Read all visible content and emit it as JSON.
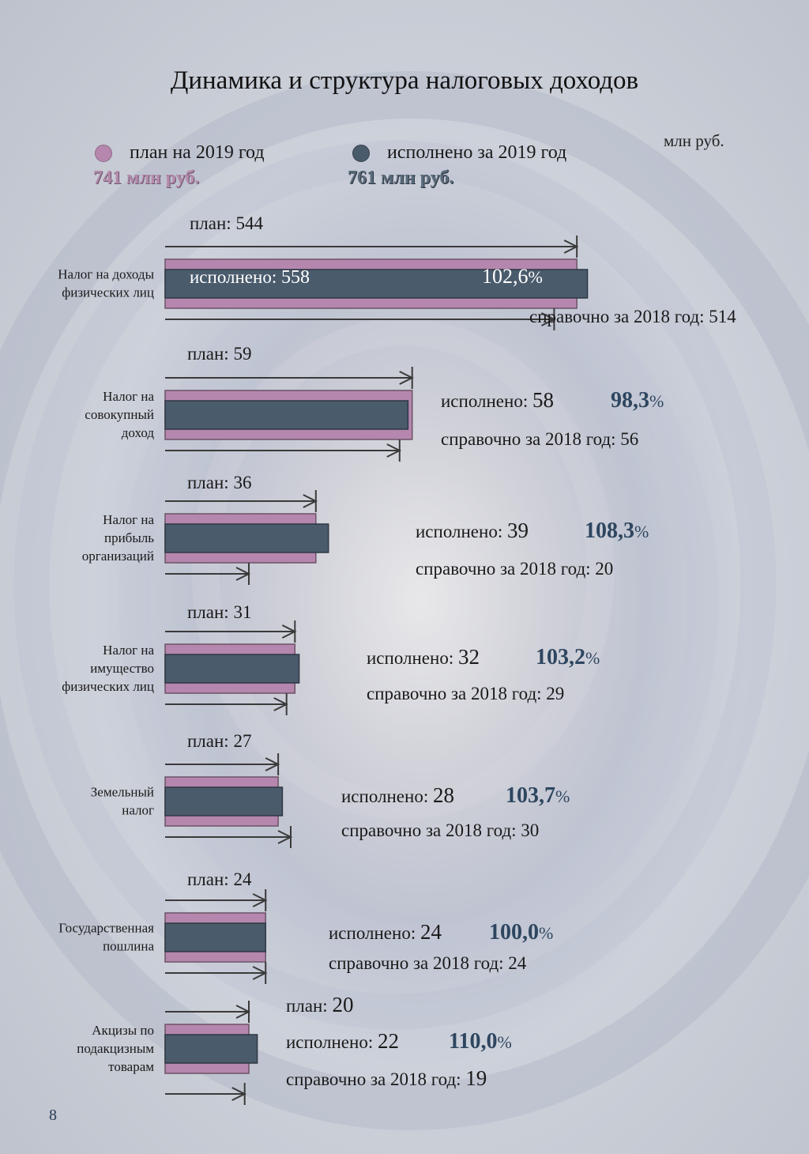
{
  "page": {
    "title": "Динамика и структура налоговых доходов",
    "unit": "млн руб.",
    "page_number": "8"
  },
  "legend": {
    "plan": {
      "label": "план на 2019 год",
      "total": "741 млн руб.",
      "color": "#b587ae"
    },
    "exec": {
      "label": "исполнено за 2019 год",
      "total": "761 млн руб.",
      "color": "#4a5b6c"
    }
  },
  "prefixes": {
    "plan": "план: ",
    "exec": "исполнено: ",
    "ref": "справочно за 2018 год: "
  },
  "chart_data": {
    "type": "bar",
    "categories": [
      [
        "Налог на доходы",
        "физических лиц"
      ],
      [
        "Налог на",
        "совокупный",
        "доход"
      ],
      [
        "Налог на",
        "прибыль",
        "организаций"
      ],
      [
        "Налог на",
        "имущество",
        "физических лиц"
      ],
      [
        "Земельный",
        "налог"
      ],
      [
        "Государственная",
        "пошлина"
      ],
      [
        "Акцизы по",
        "подакцизным",
        "товарам"
      ]
    ],
    "series": [
      {
        "name": "план на 2019 год",
        "values": [
          544,
          59,
          36,
          31,
          27,
          24,
          20
        ]
      },
      {
        "name": "исполнено за 2019 год",
        "values": [
          558,
          58,
          39,
          32,
          28,
          24,
          22
        ]
      },
      {
        "name": "справочно за 2018 год",
        "values": [
          514,
          56,
          20,
          29,
          30,
          24,
          19
        ]
      }
    ],
    "percent": [
      "102,6",
      "98,3",
      "108,3",
      "103,2",
      "103,7",
      "100,0",
      "110,0"
    ]
  }
}
